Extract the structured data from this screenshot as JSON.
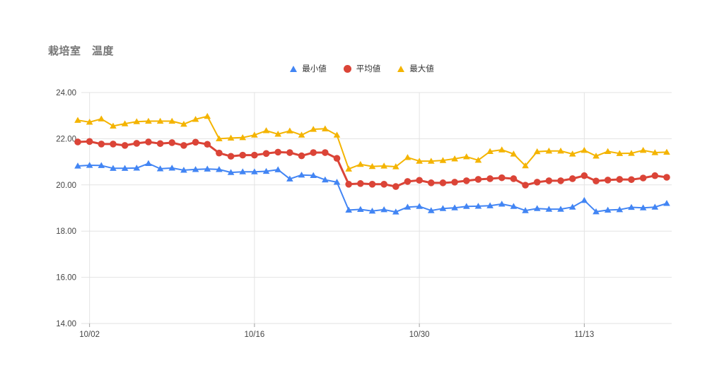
{
  "chart": {
    "title": "栽培室　温度",
    "legend": [
      {
        "label": "最小値",
        "marker": "triangle",
        "color": "#4285F4"
      },
      {
        "label": "平均値",
        "marker": "circle",
        "color": "#DB4437"
      },
      {
        "label": "最大値",
        "marker": "triangle",
        "color": "#F4B400"
      }
    ]
  },
  "chart_data": {
    "type": "line",
    "title": "栽培室　温度",
    "ylabel": "",
    "xlabel": "",
    "ylim": [
      14,
      24
    ],
    "grid": true,
    "legend_position": "top-center",
    "yticks": [
      "14.00",
      "16.00",
      "18.00",
      "20.00",
      "22.00",
      "24.00"
    ],
    "xticks": [
      {
        "label": "10/02",
        "index": 1
      },
      {
        "label": "10/16",
        "index": 15
      },
      {
        "label": "10/30",
        "index": 29
      },
      {
        "label": "11/13",
        "index": 43
      }
    ],
    "x": [
      "10/01",
      "10/02",
      "10/03",
      "10/04",
      "10/05",
      "10/06",
      "10/07",
      "10/08",
      "10/09",
      "10/10",
      "10/11",
      "10/12",
      "10/13",
      "10/14",
      "10/15",
      "10/16",
      "10/17",
      "10/18",
      "10/19",
      "10/20",
      "10/21",
      "10/22",
      "10/23",
      "10/24",
      "10/25",
      "10/26",
      "10/27",
      "10/28",
      "10/29",
      "10/30",
      "10/31",
      "11/01",
      "11/02",
      "11/03",
      "11/04",
      "11/05",
      "11/06",
      "11/07",
      "11/08",
      "11/09",
      "11/10",
      "11/11",
      "11/12",
      "11/13",
      "11/14",
      "11/15",
      "11/16",
      "11/17",
      "11/18",
      "11/19",
      "11/20"
    ],
    "series": [
      {
        "name": "最小値",
        "marker": "triangle",
        "color": "#4285F4",
        "line_width": 2,
        "values": [
          20.82,
          20.85,
          20.84,
          20.72,
          20.72,
          20.73,
          20.93,
          20.7,
          20.73,
          20.64,
          20.67,
          20.69,
          20.67,
          20.54,
          20.57,
          20.57,
          20.59,
          20.66,
          20.26,
          20.43,
          20.41,
          20.22,
          20.12,
          18.91,
          18.94,
          18.87,
          18.93,
          18.83,
          19.04,
          19.07,
          18.89,
          18.98,
          19.01,
          19.07,
          19.08,
          19.1,
          19.17,
          19.07,
          18.89,
          18.98,
          18.95,
          18.95,
          19.04,
          19.33,
          18.84,
          18.91,
          18.93,
          19.03,
          19.01,
          19.04,
          19.2
        ]
      },
      {
        "name": "平均値",
        "marker": "circle",
        "color": "#DB4437",
        "line_width": 3,
        "values": [
          21.86,
          21.88,
          21.77,
          21.77,
          21.71,
          21.8,
          21.86,
          21.79,
          21.83,
          21.71,
          21.85,
          21.76,
          21.38,
          21.24,
          21.29,
          21.29,
          21.36,
          21.42,
          21.4,
          21.26,
          21.4,
          21.4,
          21.15,
          20.03,
          20.06,
          20.03,
          20.03,
          19.93,
          20.15,
          20.2,
          20.09,
          20.09,
          20.12,
          20.18,
          20.24,
          20.27,
          20.31,
          20.27,
          19.99,
          20.12,
          20.18,
          20.18,
          20.27,
          20.4,
          20.17,
          20.21,
          20.24,
          20.23,
          20.3,
          20.4,
          20.33
        ]
      },
      {
        "name": "最大値",
        "marker": "triangle",
        "color": "#F4B400",
        "line_width": 2,
        "values": [
          22.8,
          22.72,
          22.86,
          22.55,
          22.65,
          22.74,
          22.76,
          22.76,
          22.76,
          22.63,
          22.84,
          22.97,
          22.0,
          22.03,
          22.05,
          22.16,
          22.35,
          22.2,
          22.34,
          22.16,
          22.41,
          22.43,
          22.16,
          20.69,
          20.89,
          20.8,
          20.82,
          20.79,
          21.19,
          21.03,
          21.03,
          21.06,
          21.13,
          21.22,
          21.07,
          21.45,
          21.52,
          21.34,
          20.83,
          21.44,
          21.47,
          21.47,
          21.34,
          21.5,
          21.25,
          21.45,
          21.36,
          21.37,
          21.5,
          21.4,
          21.42
        ]
      }
    ],
    "colors": {
      "grid_line": "#e3e3e3",
      "axis_line": "#e0e0e0",
      "tick_mark": "#9e9e9e",
      "axis_text": "#444444"
    }
  }
}
